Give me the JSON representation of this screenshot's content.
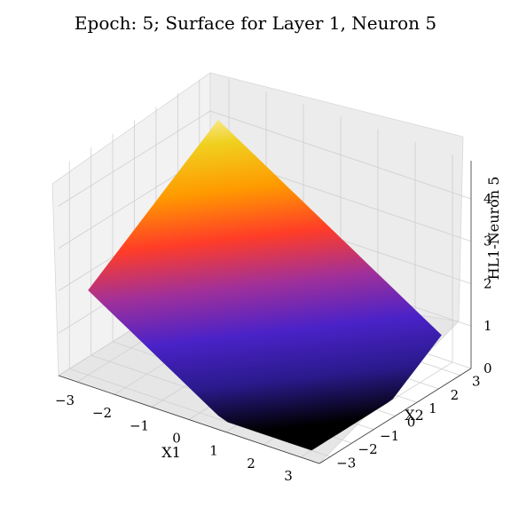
{
  "chart_data": {
    "type": "surface",
    "title": "Epoch: 5; Surface for Layer 1, Neuron 5",
    "xlabel": "X1",
    "ylabel": "X2",
    "zlabel": "HL1-Neuron 5",
    "xlim": [
      -3.5,
      3.5
    ],
    "ylim": [
      -3.5,
      3.5
    ],
    "zlim": [
      0,
      4.9
    ],
    "x_ticks": [
      "−3",
      "−2",
      "−1",
      "0",
      "1",
      "2",
      "3"
    ],
    "y_ticks": [
      "−3",
      "−2",
      "−1",
      "0",
      "1",
      "2",
      "3"
    ],
    "z_ticks": [
      "0",
      "1",
      "2",
      "3",
      "4"
    ],
    "grid": true,
    "colormap": [
      "#000000",
      "#2a1a8c",
      "#4a22c8",
      "#a0309a",
      "#ff3c28",
      "#ff9900",
      "#f0d020",
      "#fffff0"
    ],
    "surface_description_domain": "ReLU ramp over X1, X2 in [-3, 3], maximum about 4.7 at X1=-3, X2=3"
  }
}
